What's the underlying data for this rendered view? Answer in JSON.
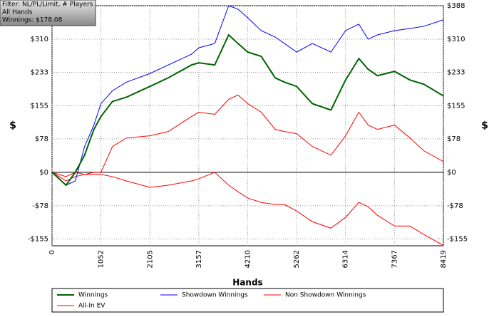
{
  "chart_data": {
    "type": "line",
    "info_box": [
      "Filter: NL/PL/Limit, # Players",
      "All Hands",
      "Winnings: $178.08"
    ],
    "x_label": "Hands",
    "y_label": "$",
    "y2_label": "$",
    "x": [
      0,
      300,
      500,
      700,
      900,
      1052,
      1300,
      1600,
      2105,
      2500,
      3000,
      3157,
      3500,
      3800,
      4000,
      4210,
      4500,
      4800,
      5000,
      5262,
      5600,
      6000,
      6314,
      6600,
      6800,
      7000,
      7367,
      7700,
      8000,
      8419
    ],
    "series": [
      {
        "name": "Winnings",
        "color": "#006400",
        "values": [
          0,
          -30,
          0,
          40,
          100,
          130,
          165,
          175,
          200,
          220,
          250,
          255,
          250,
          320,
          300,
          280,
          270,
          220,
          210,
          200,
          160,
          145,
          215,
          265,
          240,
          225,
          235,
          215,
          205,
          178
        ]
      },
      {
        "name": "Showdown Winnings",
        "color": "#0000ff",
        "values": [
          0,
          -30,
          -20,
          60,
          110,
          160,
          190,
          210,
          230,
          250,
          275,
          290,
          300,
          388,
          380,
          360,
          330,
          315,
          300,
          280,
          300,
          280,
          330,
          345,
          310,
          320,
          330,
          335,
          340,
          355
        ]
      },
      {
        "name": "Non Showdown Winnings",
        "color": "#ff0000",
        "values": [
          0,
          -10,
          0,
          -5,
          -5,
          -5,
          -10,
          -20,
          -35,
          -30,
          -20,
          -15,
          0,
          -30,
          -45,
          -60,
          -70,
          -75,
          -75,
          -90,
          -115,
          -130,
          -105,
          -70,
          -80,
          -100,
          -125,
          -125,
          -145,
          -170
        ]
      },
      {
        "name": "All-In EV",
        "color": "#ff0000",
        "values": [
          0,
          -20,
          -10,
          -5,
          0,
          0,
          60,
          80,
          85,
          95,
          130,
          140,
          135,
          170,
          180,
          160,
          140,
          100,
          95,
          90,
          60,
          40,
          85,
          140,
          110,
          100,
          110,
          80,
          50,
          25
        ]
      }
    ],
    "xlim": [
      0,
      8419
    ],
    "xticks": [
      0,
      1052,
      2105,
      3157,
      4210,
      5262,
      6314,
      7367,
      8419
    ],
    "ylim": [
      -171,
      388
    ],
    "yticks": [
      {
        "value": -155,
        "label": "-$155"
      },
      {
        "value": -78,
        "label": "-$78"
      },
      {
        "value": 0,
        "label": "$0"
      },
      {
        "value": 78,
        "label": "$78"
      },
      {
        "value": 155,
        "label": "$155"
      },
      {
        "value": 233,
        "label": "$233"
      },
      {
        "value": 310,
        "label": "$310"
      },
      {
        "value": 388,
        "label": "$388"
      }
    ],
    "grid": true
  }
}
